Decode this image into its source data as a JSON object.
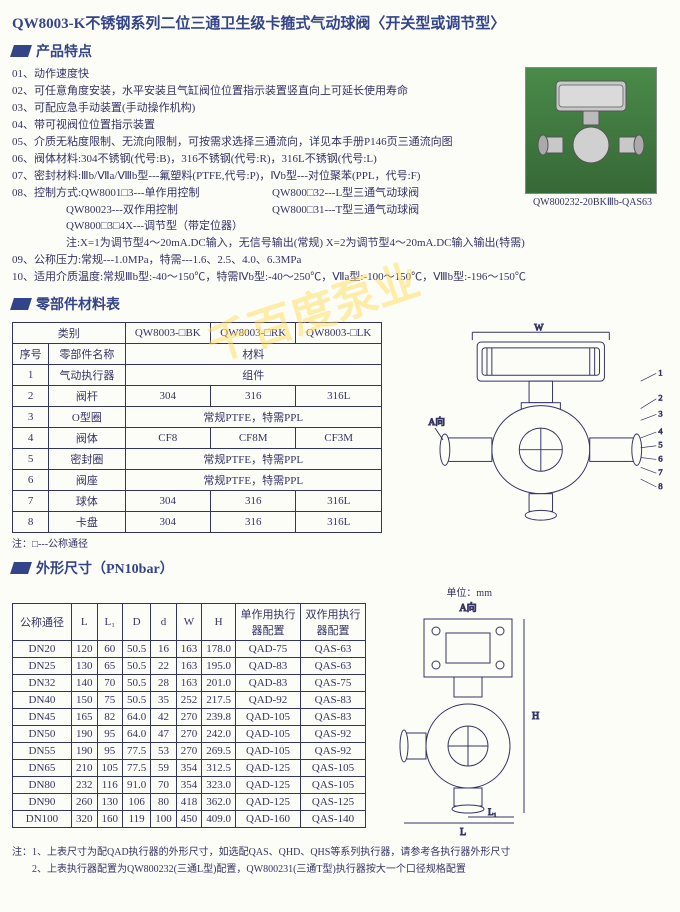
{
  "title": "QW8003-K不锈钢系列二位三通卫生级卡箍式气动球阀〈开关型或调节型〉",
  "watermark": "千百度泵业",
  "section_features": "产品特点",
  "section_materials": "零部件材料表",
  "section_dims": "外形尺寸（PN10bar）",
  "features": [
    "01、动作速度快",
    "02、可任意角度安装，水平安装且气缸阀位位置指示装置竖直向上可延长使用寿命",
    "03、可配应急手动装置(手动操作机构)",
    "04、带可视阀位位置指示装置",
    "05、介质无粘度限制、无流向限制，可按需求选择三通流向，详见本手册P146页三通流向图",
    "06、阀体材料:304不锈钢(代号:B)，316不锈钢(代号:R)，316L不锈钢(代号:L)",
    "07、密封材料:Ⅲb/Ⅶa/Ⅷb型---氟塑料(PTFE,代号:P)，Ⅳb型---对位聚苯(PPL，代号:F)"
  ],
  "feature08_head": "08、控制方式:QW8001□3---单作用控制",
  "feature08_r1": "QW800□32---L型三通气动球阀",
  "feature08_l2": "QW80023---双作用控制",
  "feature08_r2": "QW800□31---T型三通气动球阀",
  "feature08_l3": "QW800□3□4X---调节型（带定位器）",
  "feature08_note": "注:X=1为调节型4～20mA.DC输入，无信号输出(常规)  X=2为调节型4～20mA.DC输入输出(特需)",
  "feature09": "09、公称压力:常规---1.0MPa，特需---1.6、2.5、4.0、6.3MPa",
  "feature10": "10、适用介质温度:常规Ⅲb型:-40～150℃，特需Ⅳb型:-40～250℃，Ⅶa型:-100～150℃，Ⅷb型:-196～150℃",
  "product_caption": "QW800232-20BKⅢb-QAS63",
  "materials": {
    "cat_label": "类别",
    "cat_cols": [
      "QW8003-□BK",
      "QW8003-□RK",
      "QW8003-□LK"
    ],
    "seq_label": "序号",
    "name_label": "零部件名称",
    "mat_label": "材料",
    "rows": [
      {
        "n": "1",
        "name": "气动执行器",
        "m": [
          "组件"
        ]
      },
      {
        "n": "2",
        "name": "阀杆",
        "m": [
          "304",
          "316",
          "316L"
        ]
      },
      {
        "n": "3",
        "name": "O型圈",
        "m": [
          "常规PTFE，特需PPL"
        ]
      },
      {
        "n": "4",
        "name": "阀体",
        "m": [
          "CF8",
          "CF8M",
          "CF3M"
        ]
      },
      {
        "n": "5",
        "name": "密封圈",
        "m": [
          "常规PTFE，特需PPL"
        ]
      },
      {
        "n": "6",
        "name": "阀座",
        "m": [
          "常规PTFE，特需PPL"
        ]
      },
      {
        "n": "7",
        "name": "球体",
        "m": [
          "304",
          "316",
          "316L"
        ]
      },
      {
        "n": "8",
        "name": "卡盘",
        "m": [
          "304",
          "316",
          "316L"
        ]
      }
    ],
    "note": "注：□---公称通径"
  },
  "dims": {
    "unit": "单位：mm",
    "headers": [
      "公称通径",
      "L",
      "L₁",
      "D",
      "d",
      "W",
      "H",
      "单作用执行器配置",
      "双作用执行器配置"
    ],
    "rows": [
      [
        "DN20",
        "120",
        "60",
        "50.5",
        "16",
        "163",
        "178.0",
        "QAD-75",
        "QAS-63"
      ],
      [
        "DN25",
        "130",
        "65",
        "50.5",
        "22",
        "163",
        "195.0",
        "QAD-83",
        "QAS-63"
      ],
      [
        "DN32",
        "140",
        "70",
        "50.5",
        "28",
        "163",
        "201.0",
        "QAD-83",
        "QAS-75"
      ],
      [
        "DN40",
        "150",
        "75",
        "50.5",
        "35",
        "252",
        "217.5",
        "QAD-92",
        "QAS-83"
      ],
      [
        "DN45",
        "165",
        "82",
        "64.0",
        "42",
        "270",
        "239.8",
        "QAD-105",
        "QAS-83"
      ],
      [
        "DN50",
        "190",
        "95",
        "64.0",
        "47",
        "270",
        "242.0",
        "QAD-105",
        "QAS-92"
      ],
      [
        "DN55",
        "190",
        "95",
        "77.5",
        "53",
        "270",
        "269.5",
        "QAD-105",
        "QAS-92"
      ],
      [
        "DN65",
        "210",
        "105",
        "77.5",
        "59",
        "354",
        "312.5",
        "QAD-125",
        "QAS-105"
      ],
      [
        "DN80",
        "232",
        "116",
        "91.0",
        "70",
        "354",
        "323.0",
        "QAD-125",
        "QAS-105"
      ],
      [
        "DN90",
        "260",
        "130",
        "106",
        "80",
        "418",
        "362.0",
        "QAD-125",
        "QAS-125"
      ],
      [
        "DN100",
        "320",
        "160",
        "119",
        "100",
        "450",
        "409.0",
        "QAD-160",
        "QAS-140"
      ]
    ],
    "note1": "注：1、上表尺寸为配QAD执行器的外形尺寸，如选配QAS、QHD、QHS等系列执行器，请参考各执行器外形尺寸",
    "note2": "　　2、上表执行器配置为QW800232(三通L型)配置，QW800231(三通T型)执行器按大一个口径规格配置"
  },
  "diagram_labels": {
    "w": "W",
    "a": "A向",
    "h": "H",
    "l": "L",
    "l1": "L₁"
  }
}
